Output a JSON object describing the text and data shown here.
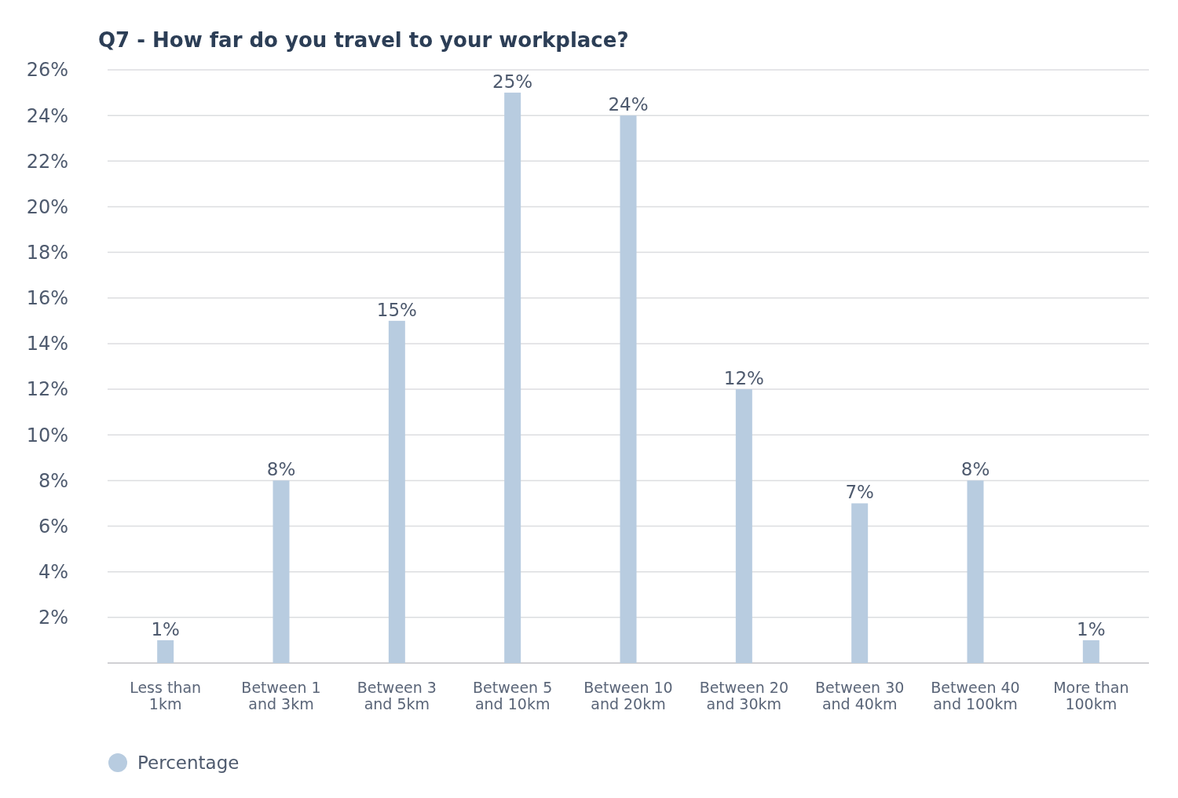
{
  "chart_data": {
    "type": "bar",
    "title": "Q7 - How far do you travel to your workplace?",
    "categories": [
      "Less than 1km",
      "Between 1 and 3km",
      "Between 3 and 5km",
      "Between 5 and 10km",
      "Between 10 and 20km",
      "Between 20 and 30km",
      "Between 30 and 40km",
      "Between 40 and 100km",
      "More than 100km"
    ],
    "series": [
      {
        "name": "Percentage",
        "color": "#b8cce0",
        "values": [
          1,
          8,
          15,
          25,
          24,
          12,
          7,
          8,
          1
        ]
      }
    ],
    "value_labels": [
      "1%",
      "8%",
      "15%",
      "25%",
      "24%",
      "12%",
      "7%",
      "8%",
      "1%"
    ],
    "ylim": [
      0,
      26
    ],
    "yticks": [
      {
        "value": 0,
        "label": null
      },
      {
        "value": 2,
        "label": "2%"
      },
      {
        "value": 4,
        "label": "4%"
      },
      {
        "value": 6,
        "label": "6%"
      },
      {
        "value": 8,
        "label": "8%"
      },
      {
        "value": 10,
        "label": "10%"
      },
      {
        "value": 12,
        "label": "12%"
      },
      {
        "value": 14,
        "label": "14%"
      },
      {
        "value": 16,
        "label": "16%"
      },
      {
        "value": 18,
        "label": "18%"
      },
      {
        "value": 20,
        "label": "20%"
      },
      {
        "value": 22,
        "label": "22%"
      },
      {
        "value": 24,
        "label": "24%"
      },
      {
        "value": 26,
        "label": "26%"
      }
    ],
    "grid": "y",
    "legend": "bottom left"
  }
}
